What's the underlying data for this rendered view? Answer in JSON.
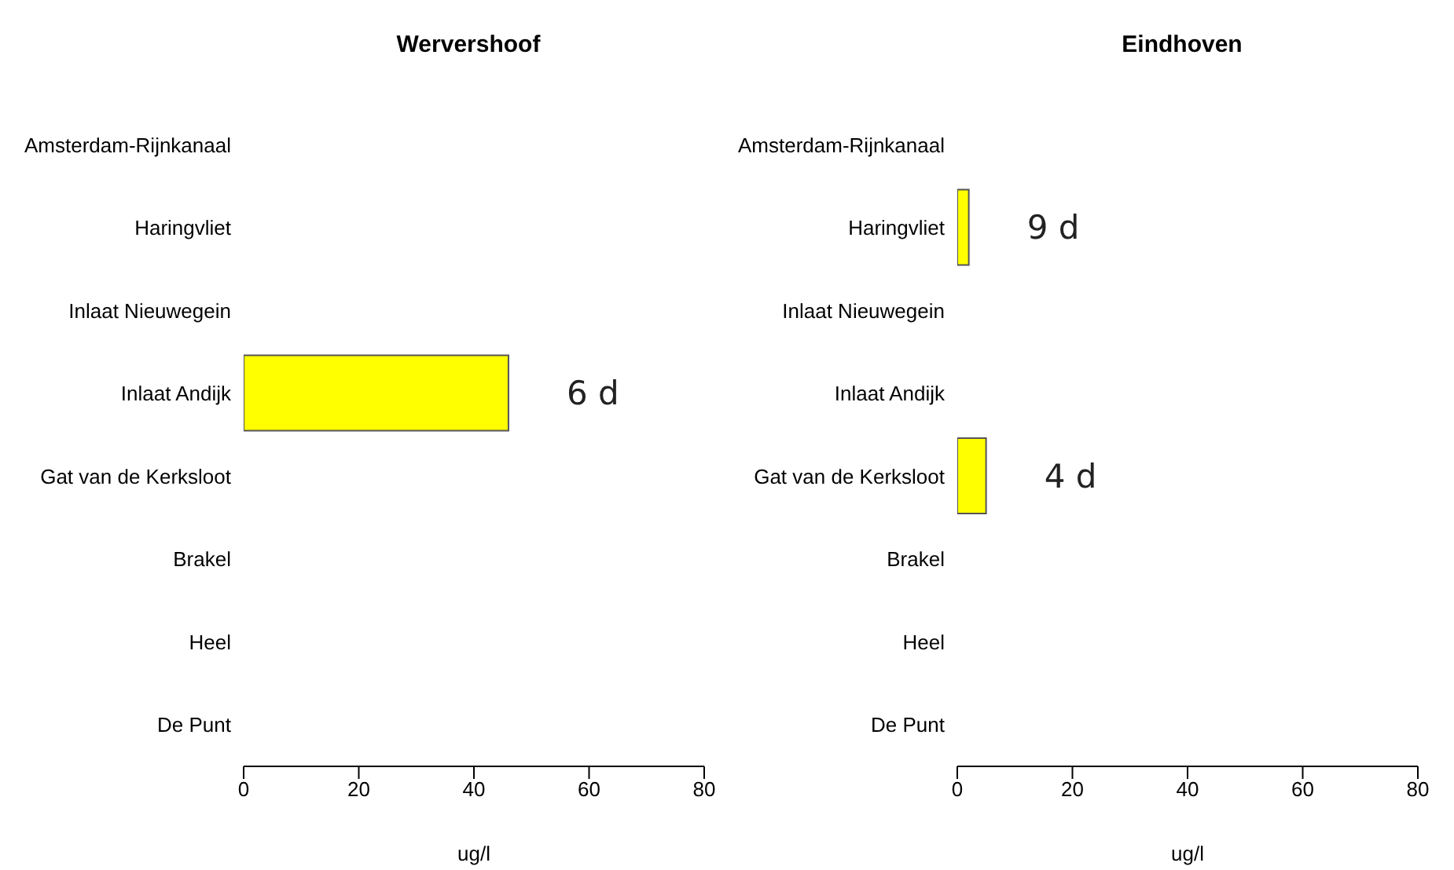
{
  "chart_data": [
    {
      "type": "bar",
      "orientation": "horizontal",
      "title": "Wervershoof",
      "xlabel": "ug/l",
      "categories": [
        "Amsterdam-Rijnkanaal",
        "Haringvliet",
        "Inlaat Nieuwegein",
        "Inlaat Andijk",
        "Gat van de Kerksloot",
        "Brakel",
        "Heel",
        "De Punt"
      ],
      "values": [
        null,
        null,
        null,
        46,
        null,
        null,
        null,
        null
      ],
      "annotations": [
        "6 d"
      ],
      "color": "#ffff00",
      "xlim": [
        0,
        80
      ],
      "xticks": [
        0,
        20,
        40,
        60,
        80
      ],
      "grid": false
    },
    {
      "type": "bar",
      "orientation": "horizontal",
      "title": "Eindhoven",
      "xlabel": "ug/l",
      "categories": [
        "Amsterdam-Rijnkanaal",
        "Haringvliet",
        "Inlaat Nieuwegein",
        "Inlaat Andijk",
        "Gat van de Kerksloot",
        "Brakel",
        "Heel",
        "De Punt"
      ],
      "values": [
        null,
        2,
        null,
        null,
        5,
        null,
        null,
        null
      ],
      "annotations": [
        "9 d",
        "4 d"
      ],
      "color": "#ffff00",
      "xlim": [
        0,
        80
      ],
      "xticks": [
        0,
        20,
        40,
        60,
        80
      ],
      "grid": false
    }
  ]
}
